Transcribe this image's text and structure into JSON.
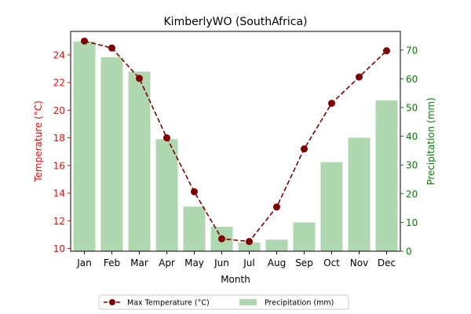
{
  "chart_data": {
    "type": "bar",
    "title": "KimberlyWO (SouthAfrica)",
    "xlabel": "Month",
    "categories": [
      "Jan",
      "Feb",
      "Mar",
      "Apr",
      "May",
      "Jun",
      "Jul",
      "Aug",
      "Sep",
      "Oct",
      "Nov",
      "Dec"
    ],
    "axes": {
      "y_left": {
        "label": "Temperature (°C)",
        "ylim": [
          9.8,
          25.7
        ],
        "ticks": [
          10,
          12,
          14,
          16,
          18,
          20,
          22,
          24
        ],
        "color": "#ff0000"
      },
      "y_right": {
        "label": "Precipitation (mm)",
        "ylim": [
          0,
          76.5
        ],
        "ticks": [
          0,
          10,
          20,
          30,
          40,
          50,
          60,
          70
        ],
        "color": "#008000"
      }
    },
    "series": [
      {
        "name": "Max Temperature (°C)",
        "type": "line",
        "axis": "left",
        "color": "#800000",
        "line_style": "dashed",
        "marker": "circle",
        "values": [
          25.0,
          24.5,
          22.3,
          18.0,
          14.1,
          10.7,
          10.5,
          13.0,
          17.2,
          20.5,
          22.4,
          24.3
        ]
      },
      {
        "name": "Precipitation (mm)",
        "type": "bar",
        "axis": "right",
        "color": "#b0d8b0",
        "values": [
          73.0,
          67.5,
          62.5,
          39.0,
          15.5,
          8.5,
          3.0,
          4.0,
          10.0,
          31.0,
          39.5,
          52.5
        ]
      }
    ],
    "grid": false,
    "legend": {
      "position": "bottom-center",
      "entries": [
        "Max Temperature (°C)",
        "Precipitation (mm)"
      ]
    }
  }
}
